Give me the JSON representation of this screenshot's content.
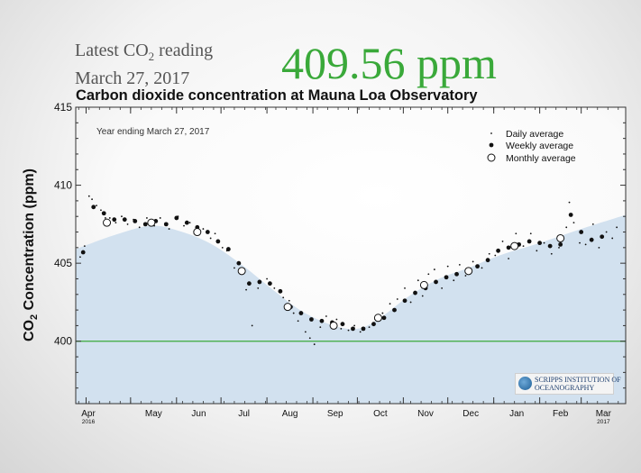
{
  "header": {
    "label_line1_a": "Latest CO",
    "label_line1_sub": "2",
    "label_line1_b": " reading",
    "label_line2": "March 27, 2017",
    "big_value": "409.56 ppm"
  },
  "logo": {
    "line1": "SCRIPPS INSTITUTION OF",
    "line2": "OCEANOGRAPHY"
  },
  "colors": {
    "fill": "#d2e1ef",
    "reference_line": "#3aa93a",
    "title_value": "#3aa93a"
  },
  "chart_data": {
    "type": "scatter",
    "title": "Carbon dioxide concentration at Mauna Loa Observatory",
    "ylabel_a": "CO",
    "ylabel_sub": "2",
    "ylabel_b": " Concentration (ppm)",
    "annotation": "Year ending March 27, 2017",
    "ylim": [
      396,
      415
    ],
    "yticks": [
      400,
      405,
      410,
      415
    ],
    "x_months": [
      {
        "label": "Apr",
        "year": "2016"
      },
      {
        "label": "May",
        "year": ""
      },
      {
        "label": "Jun",
        "year": ""
      },
      {
        "label": "Jul",
        "year": ""
      },
      {
        "label": "Aug",
        "year": ""
      },
      {
        "label": "Sep",
        "year": ""
      },
      {
        "label": "Oct",
        "year": ""
      },
      {
        "label": "Nov",
        "year": ""
      },
      {
        "label": "Dec",
        "year": ""
      },
      {
        "label": "Jan",
        "year": ""
      },
      {
        "label": "Feb",
        "year": ""
      },
      {
        "label": "Mar",
        "year": "2017"
      }
    ],
    "reference_line": 400,
    "legend": {
      "position": "top-right",
      "entries": [
        "Daily average",
        "Weekly average",
        "Monthly average"
      ]
    },
    "seasonal_curve": [
      [
        "2016-03-28",
        405.9
      ],
      [
        "2016-04-20",
        406.8
      ],
      [
        "2016-05-15",
        407.4
      ],
      [
        "2016-06-05",
        407.0
      ],
      [
        "2016-06-25",
        406.2
      ],
      [
        "2016-07-15",
        404.9
      ],
      [
        "2016-08-05",
        403.3
      ],
      [
        "2016-08-25",
        401.9
      ],
      [
        "2016-09-15",
        401.0
      ],
      [
        "2016-10-01",
        400.8
      ],
      [
        "2016-10-15",
        401.4
      ],
      [
        "2016-11-05",
        402.9
      ],
      [
        "2016-11-25",
        404.0
      ],
      [
        "2016-12-15",
        404.7
      ],
      [
        "2017-01-05",
        405.5
      ],
      [
        "2017-02-01",
        406.3
      ],
      [
        "2017-03-01",
        407.2
      ],
      [
        "2017-03-27",
        408.1
      ]
    ],
    "monthly_average": [
      [
        "2016-04-15",
        407.6
      ],
      [
        "2016-05-15",
        407.6
      ],
      [
        "2016-06-15",
        407.0
      ],
      [
        "2016-07-15",
        404.5
      ],
      [
        "2016-08-15",
        402.2
      ],
      [
        "2016-09-15",
        401.0
      ],
      [
        "2016-10-15",
        401.5
      ],
      [
        "2016-11-15",
        403.6
      ],
      [
        "2016-12-15",
        404.5
      ],
      [
        "2017-01-15",
        406.1
      ],
      [
        "2017-02-15",
        406.6
      ]
    ],
    "weekly_average": [
      [
        "2016-03-30",
        405.7
      ],
      [
        "2016-04-06",
        408.6
      ],
      [
        "2016-04-13",
        408.2
      ],
      [
        "2016-04-20",
        407.8
      ],
      [
        "2016-04-27",
        407.8
      ],
      [
        "2016-05-04",
        407.7
      ],
      [
        "2016-05-11",
        407.5
      ],
      [
        "2016-05-18",
        407.7
      ],
      [
        "2016-05-25",
        407.5
      ],
      [
        "2016-06-01",
        407.9
      ],
      [
        "2016-06-08",
        407.6
      ],
      [
        "2016-06-15",
        407.3
      ],
      [
        "2016-06-22",
        407.0
      ],
      [
        "2016-06-29",
        406.4
      ],
      [
        "2016-07-06",
        405.9
      ],
      [
        "2016-07-13",
        405.0
      ],
      [
        "2016-07-20",
        403.7
      ],
      [
        "2016-07-27",
        403.8
      ],
      [
        "2016-08-03",
        403.7
      ],
      [
        "2016-08-10",
        403.2
      ],
      [
        "2016-08-17",
        402.2
      ],
      [
        "2016-08-24",
        401.8
      ],
      [
        "2016-08-31",
        401.4
      ],
      [
        "2016-09-07",
        401.3
      ],
      [
        "2016-09-14",
        401.2
      ],
      [
        "2016-09-21",
        401.1
      ],
      [
        "2016-09-28",
        400.8
      ],
      [
        "2016-10-05",
        400.8
      ],
      [
        "2016-10-12",
        401.1
      ],
      [
        "2016-10-19",
        401.5
      ],
      [
        "2016-10-26",
        402.0
      ],
      [
        "2016-11-02",
        402.6
      ],
      [
        "2016-11-09",
        403.1
      ],
      [
        "2016-11-16",
        403.4
      ],
      [
        "2016-11-23",
        403.8
      ],
      [
        "2016-11-30",
        404.1
      ],
      [
        "2016-12-07",
        404.3
      ],
      [
        "2016-12-14",
        404.5
      ],
      [
        "2016-12-21",
        404.8
      ],
      [
        "2016-12-28",
        405.2
      ],
      [
        "2017-01-04",
        405.8
      ],
      [
        "2017-01-11",
        406.0
      ],
      [
        "2017-01-18",
        406.2
      ],
      [
        "2017-01-25",
        406.4
      ],
      [
        "2017-02-01",
        406.3
      ],
      [
        "2017-02-08",
        406.1
      ],
      [
        "2017-02-15",
        406.2
      ],
      [
        "2017-02-22",
        408.1
      ],
      [
        "2017-03-01",
        407.0
      ],
      [
        "2017-03-08",
        406.5
      ],
      [
        "2017-03-15",
        406.7
      ]
    ],
    "daily_average": [
      [
        "2016-03-28",
        405.4
      ],
      [
        "2016-03-31",
        406.1
      ],
      [
        "2016-04-03",
        409.3
      ],
      [
        "2016-04-05",
        409.1
      ],
      [
        "2016-04-08",
        408.7
      ],
      [
        "2016-04-11",
        408.4
      ],
      [
        "2016-04-14",
        407.9
      ],
      [
        "2016-04-17",
        407.9
      ],
      [
        "2016-04-21",
        407.6
      ],
      [
        "2016-04-25",
        408.0
      ],
      [
        "2016-04-29",
        407.5
      ],
      [
        "2016-05-03",
        407.8
      ],
      [
        "2016-05-07",
        407.3
      ],
      [
        "2016-05-12",
        407.9
      ],
      [
        "2016-05-17",
        407.4
      ],
      [
        "2016-05-21",
        407.9
      ],
      [
        "2016-05-27",
        407.2
      ],
      [
        "2016-06-02",
        408.0
      ],
      [
        "2016-06-06",
        407.4
      ],
      [
        "2016-06-10",
        407.6
      ],
      [
        "2016-06-13",
        406.9
      ],
      [
        "2016-06-19",
        407.2
      ],
      [
        "2016-06-24",
        406.6
      ],
      [
        "2016-06-27",
        406.9
      ],
      [
        "2016-07-02",
        406.0
      ],
      [
        "2016-07-05",
        405.8
      ],
      [
        "2016-07-10",
        404.7
      ],
      [
        "2016-07-14",
        404.6
      ],
      [
        "2016-07-18",
        403.3
      ],
      [
        "2016-07-22",
        401.0
      ],
      [
        "2016-07-26",
        403.4
      ],
      [
        "2016-08-01",
        404.0
      ],
      [
        "2016-08-06",
        403.4
      ],
      [
        "2016-08-12",
        402.8
      ],
      [
        "2016-08-16",
        402.6
      ],
      [
        "2016-08-19",
        401.8
      ],
      [
        "2016-08-22",
        401.3
      ],
      [
        "2016-08-27",
        400.6
      ],
      [
        "2016-08-30",
        400.2
      ],
      [
        "2016-09-02",
        399.8
      ],
      [
        "2016-09-06",
        400.9
      ],
      [
        "2016-09-10",
        401.6
      ],
      [
        "2016-09-17",
        401.4
      ],
      [
        "2016-09-20",
        400.8
      ],
      [
        "2016-09-25",
        400.7
      ],
      [
        "2016-09-29",
        401.0
      ],
      [
        "2016-10-03",
        400.6
      ],
      [
        "2016-10-09",
        400.9
      ],
      [
        "2016-10-13",
        401.4
      ],
      [
        "2016-10-18",
        401.8
      ],
      [
        "2016-10-23",
        402.4
      ],
      [
        "2016-10-28",
        402.7
      ],
      [
        "2016-11-02",
        403.4
      ],
      [
        "2016-11-06",
        402.5
      ],
      [
        "2016-11-11",
        403.9
      ],
      [
        "2016-11-14",
        402.9
      ],
      [
        "2016-11-18",
        404.3
      ],
      [
        "2016-11-22",
        404.6
      ],
      [
        "2016-11-27",
        403.4
      ],
      [
        "2016-12-01",
        404.8
      ],
      [
        "2016-12-05",
        403.9
      ],
      [
        "2016-12-09",
        404.9
      ],
      [
        "2016-12-13",
        404.2
      ],
      [
        "2016-12-18",
        405.1
      ],
      [
        "2016-12-24",
        404.7
      ],
      [
        "2016-12-29",
        405.6
      ],
      [
        "2017-01-02",
        405.5
      ],
      [
        "2017-01-07",
        406.4
      ],
      [
        "2017-01-11",
        405.3
      ],
      [
        "2017-01-16",
        406.9
      ],
      [
        "2017-01-21",
        406.1
      ],
      [
        "2017-01-26",
        406.9
      ],
      [
        "2017-01-30",
        405.8
      ],
      [
        "2017-02-04",
        406.3
      ],
      [
        "2017-02-09",
        405.6
      ],
      [
        "2017-02-14",
        406.0
      ],
      [
        "2017-02-19",
        407.3
      ],
      [
        "2017-02-21",
        408.9
      ],
      [
        "2017-02-24",
        407.6
      ],
      [
        "2017-02-28",
        406.3
      ],
      [
        "2017-03-04",
        406.2
      ],
      [
        "2017-03-09",
        407.5
      ],
      [
        "2017-03-13",
        406.0
      ],
      [
        "2017-03-18",
        407.0
      ],
      [
        "2017-03-22",
        406.6
      ],
      [
        "2017-03-25",
        407.3
      ]
    ]
  }
}
